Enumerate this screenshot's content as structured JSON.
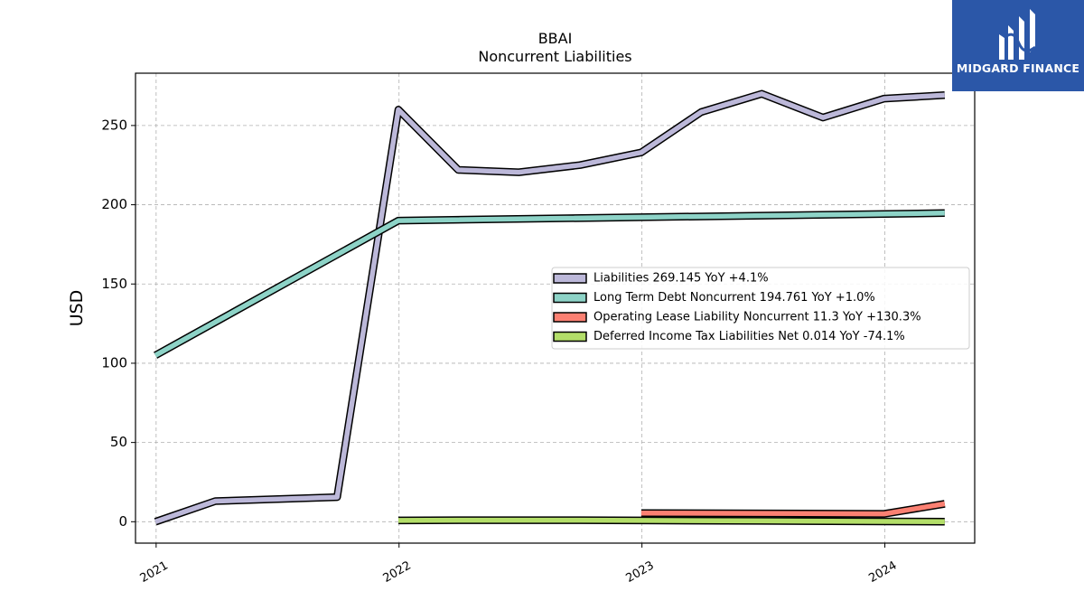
{
  "chart_data": {
    "type": "line",
    "title": "BBAI",
    "subtitle": "Noncurrent  Liabilities",
    "xlabel": "",
    "ylabel": "USD",
    "xlim": [
      "2020-12-01",
      "2024-05-15"
    ],
    "ylim": [
      -13.5,
      283
    ],
    "x_ticks": [
      "2021",
      "2022",
      "2023",
      "2024"
    ],
    "y_ticks": [
      0,
      50,
      100,
      150,
      200,
      250
    ],
    "grid": true,
    "legend_position": "center-right",
    "series": [
      {
        "name": "Liabilities  269.145 YoY +4.1%",
        "color": "#bcb8d9",
        "x": [
          "2020-12-31",
          "2021-03-31",
          "2021-09-30",
          "2021-12-31",
          "2022-03-31",
          "2022-06-30",
          "2022-09-30",
          "2022-12-31",
          "2023-03-31",
          "2023-06-30",
          "2023-09-30",
          "2023-12-31",
          "2024-03-31"
        ],
        "y": [
          0,
          13,
          15.5,
          260,
          222,
          220.5,
          225,
          233,
          258.5,
          270,
          255,
          267,
          269.145
        ]
      },
      {
        "name": "Long Term Debt Noncurrent  194.761 YoY +1.0%",
        "color": "#8dd3c7",
        "x": [
          "2020-12-31",
          "2021-12-31",
          "2024-03-31"
        ],
        "y": [
          105,
          190,
          194.761
        ]
      },
      {
        "name": "Operating Lease Liability Noncurrent  11.3 YoY +130.3%",
        "color": "#fb8072",
        "x": [
          "2022-12-31",
          "2023-12-31",
          "2024-03-31"
        ],
        "y": [
          5.5,
          5,
          11.3
        ]
      },
      {
        "name": "Deferred Income Tax Liabilities Net  0.014 YoY -74.1%",
        "color": "#b3de69",
        "x": [
          "2021-12-31",
          "2022-03-31",
          "2022-09-30",
          "2022-12-31",
          "2023-06-30",
          "2023-12-31",
          "2024-03-31"
        ],
        "y": [
          0.8,
          1.0,
          1.0,
          0.8,
          0.5,
          0.2,
          0.014
        ]
      }
    ]
  },
  "logo": {
    "text": "MIDGARD FINANCE"
  }
}
